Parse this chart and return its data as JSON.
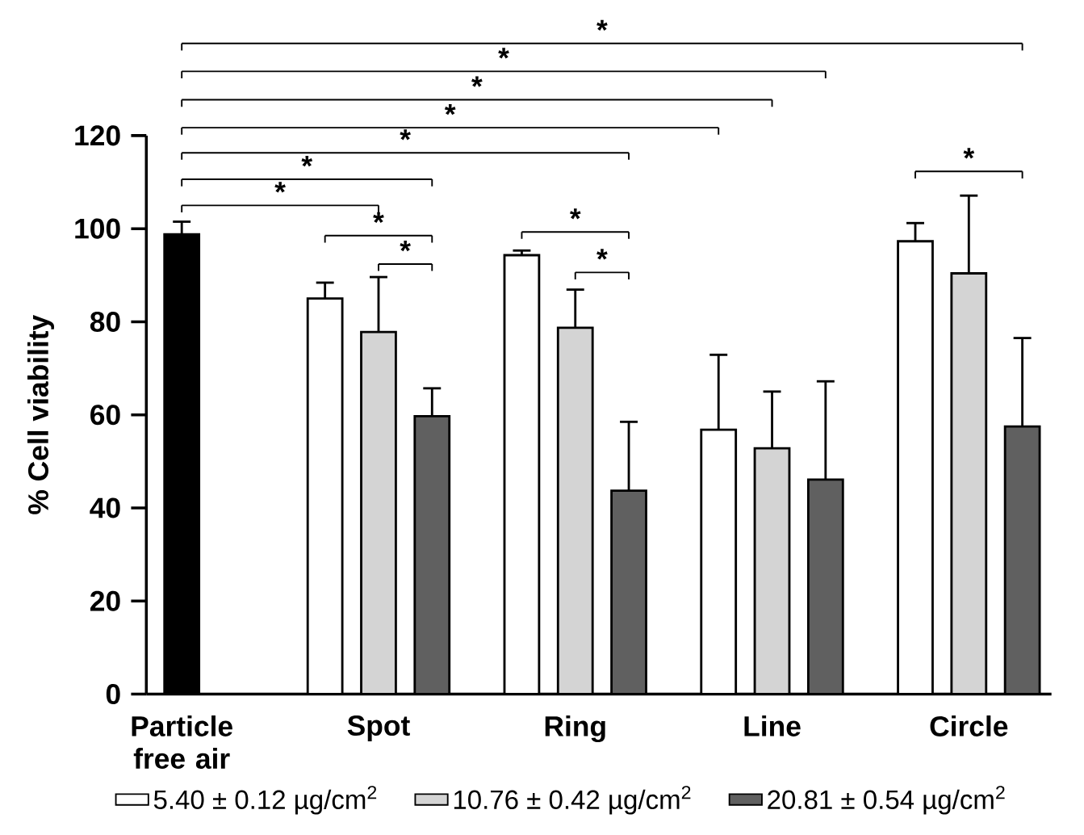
{
  "chart_data": {
    "type": "bar",
    "ylabel": "% Cell viability",
    "categories": [
      "Particle free air",
      "Spot",
      "Ring",
      "Line",
      "Circle"
    ],
    "ylim": [
      0,
      120
    ],
    "yticks": [
      0,
      20,
      40,
      60,
      80,
      100,
      120
    ],
    "legend": "bottom",
    "grid": false,
    "series": [
      {
        "color": "#000000",
        "values": [
          98.8,
          null,
          null,
          null,
          null
        ],
        "errors": [
          2.7,
          null,
          null,
          null,
          null
        ]
      },
      {
        "name": "5.40 ± 0.12 µg/cm$^{2}$",
        "color": "#ffffff",
        "values": [
          null,
          85.0,
          94.3,
          56.8,
          97.3
        ],
        "errors": [
          null,
          3.4,
          1.0,
          16.1,
          3.9
        ]
      },
      {
        "name": "10.76 ± 0.42 µg/cm$^{2}$",
        "color": "#d4d4d4",
        "values": [
          null,
          77.8,
          78.7,
          52.8,
          90.4
        ],
        "errors": [
          null,
          11.8,
          8.2,
          12.2,
          16.7
        ]
      },
      {
        "name": "20.81 ± 0.54 µg/cm$^{2}$",
        "color": "#606060",
        "values": [
          null,
          59.7,
          43.7,
          46.1,
          57.5
        ],
        "errors": [
          null,
          6.0,
          14.8,
          21.1,
          19.0
        ]
      }
    ],
    "annotations": [
      "*",
      "*",
      "*",
      "*",
      "*",
      "*",
      "*",
      "*",
      "*",
      "*",
      "*",
      "*"
    ]
  }
}
